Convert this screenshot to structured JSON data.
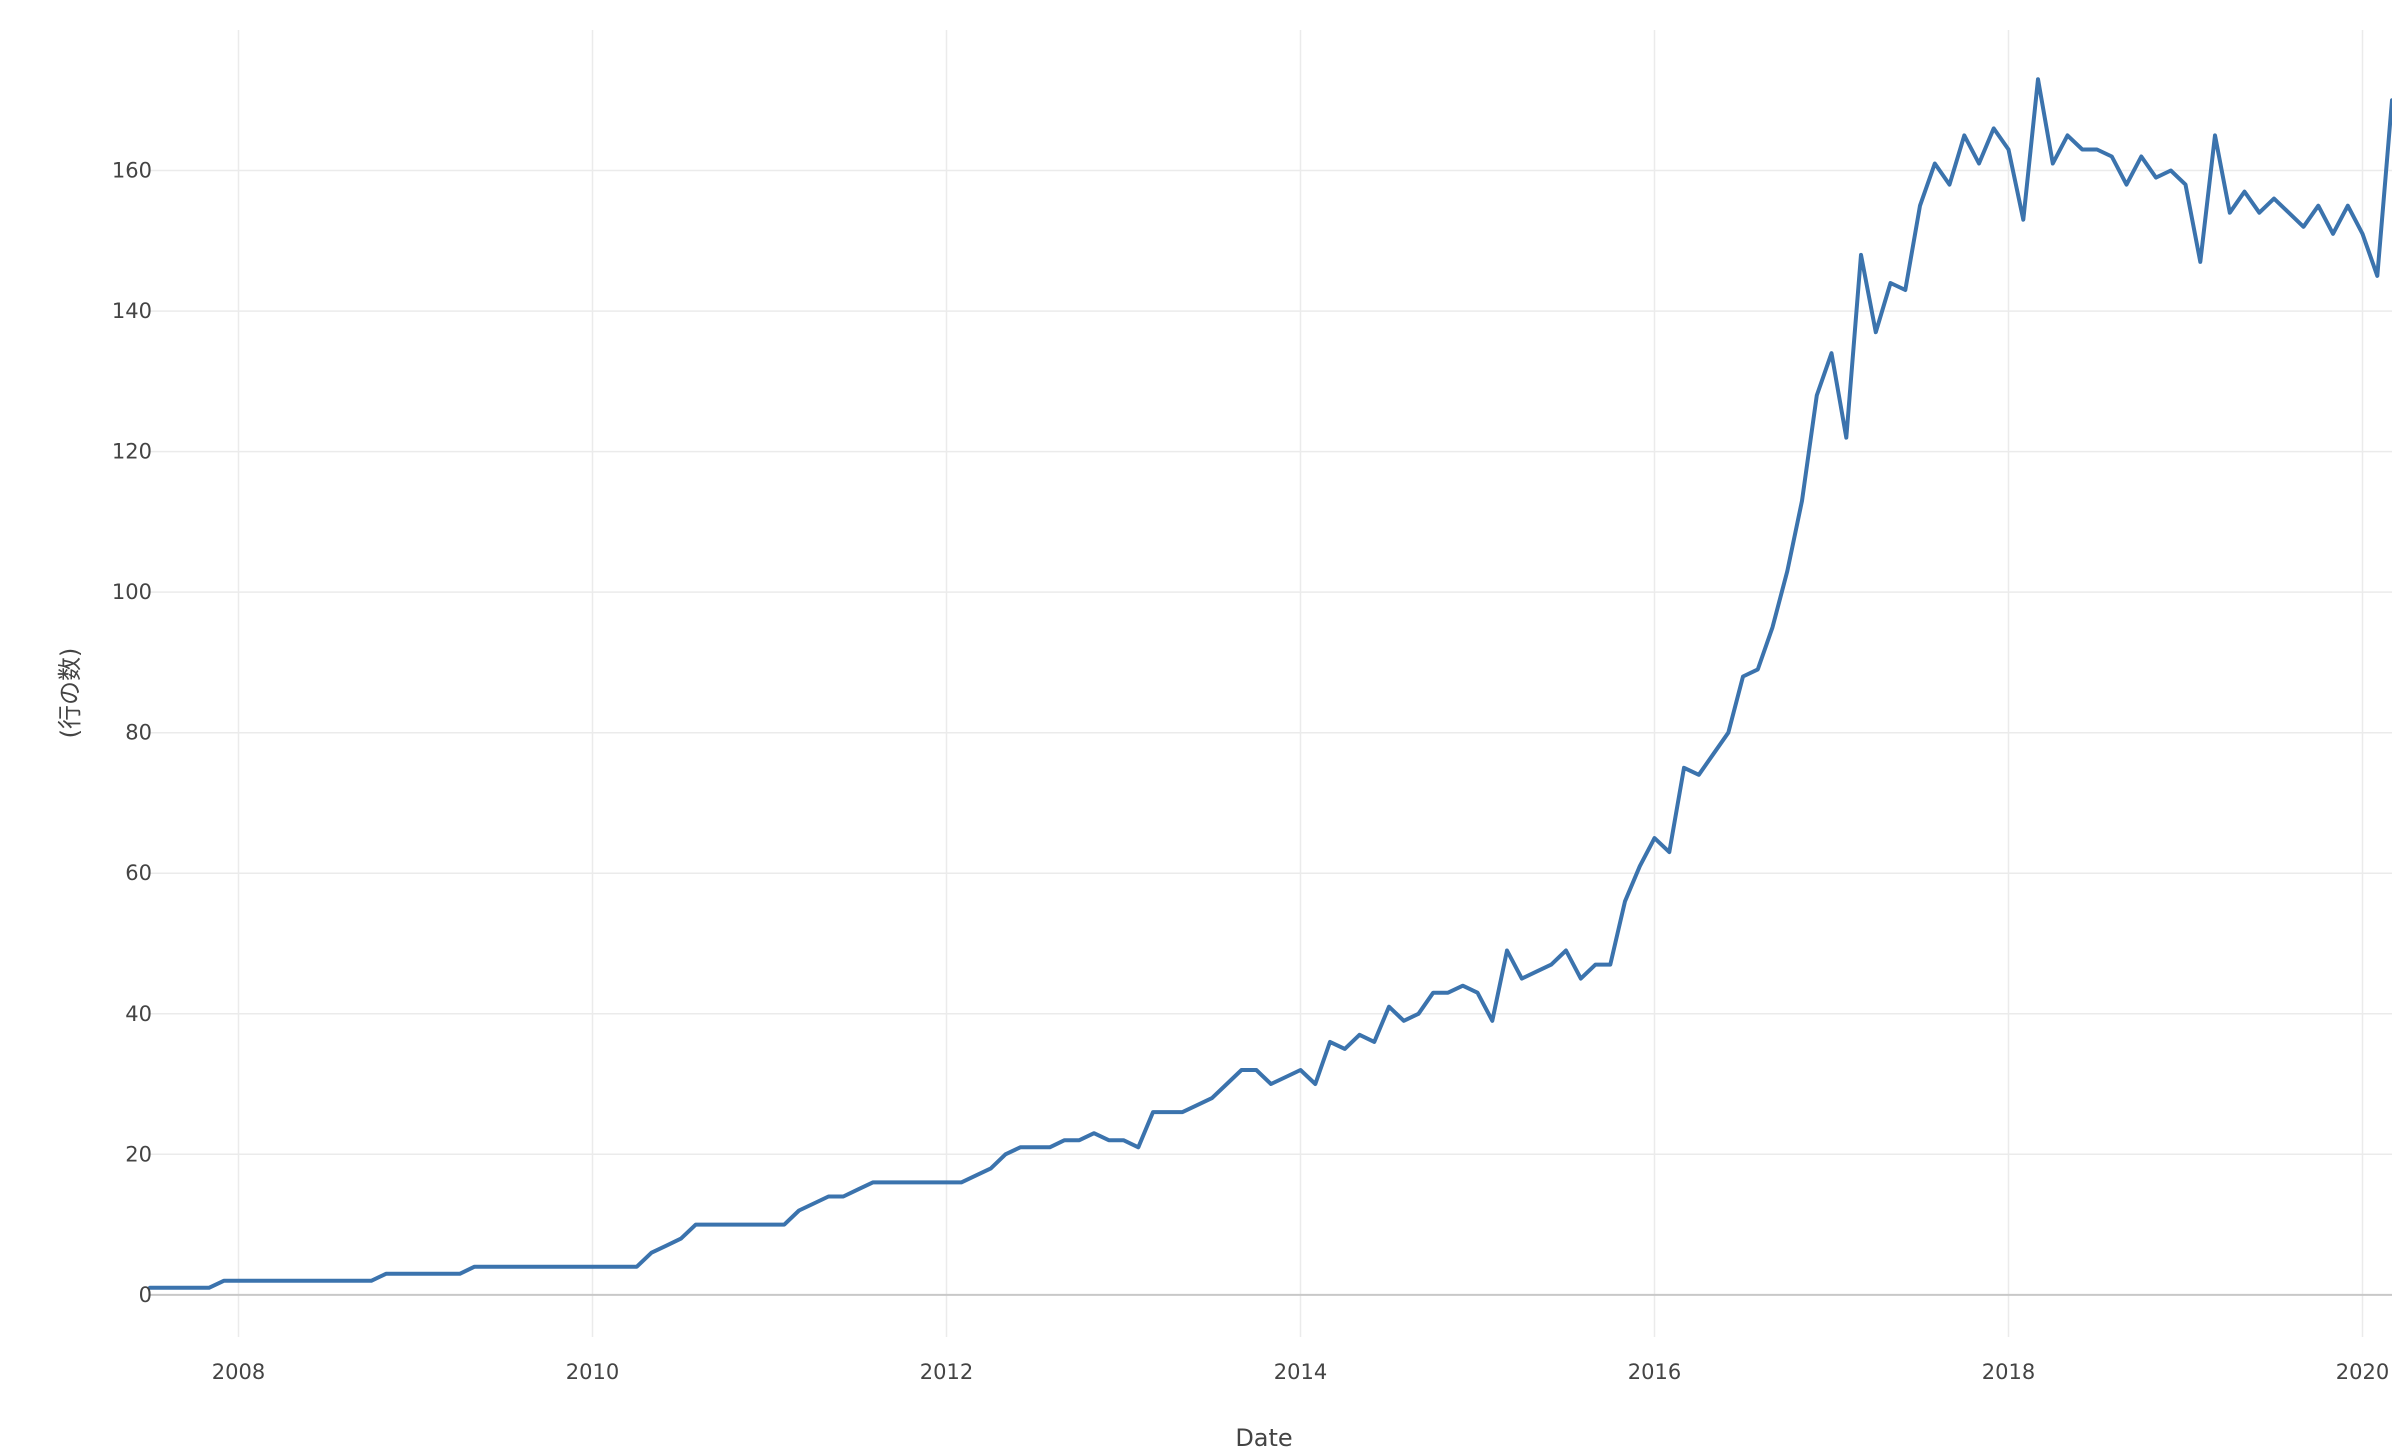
{
  "chart_data": {
    "type": "line",
    "title": "",
    "xlabel": "Date",
    "ylabel": "(行の数)",
    "xlim": [
      "2007-07",
      "2020-03"
    ],
    "ylim": [
      -6,
      180
    ],
    "grid": true,
    "x_ticks": [
      {
        "value": "2008-01",
        "label": "2008"
      },
      {
        "value": "2010-01",
        "label": "2010"
      },
      {
        "value": "2012-01",
        "label": "2012"
      },
      {
        "value": "2014-01",
        "label": "2014"
      },
      {
        "value": "2016-01",
        "label": "2016"
      },
      {
        "value": "2018-01",
        "label": "2018"
      },
      {
        "value": "2020-01",
        "label": "2020"
      }
    ],
    "y_ticks": [
      0,
      20,
      40,
      60,
      80,
      100,
      120,
      140,
      160
    ],
    "line_color": "#3b73ad",
    "series": [
      {
        "name": "",
        "x": [
          "2007-07",
          "2007-08",
          "2007-09",
          "2007-10",
          "2007-11",
          "2007-12",
          "2008-01",
          "2008-02",
          "2008-03",
          "2008-04",
          "2008-05",
          "2008-06",
          "2008-07",
          "2008-08",
          "2008-09",
          "2008-10",
          "2008-11",
          "2008-12",
          "2009-01",
          "2009-02",
          "2009-03",
          "2009-04",
          "2009-05",
          "2009-06",
          "2009-07",
          "2009-08",
          "2009-09",
          "2009-10",
          "2009-11",
          "2009-12",
          "2010-01",
          "2010-02",
          "2010-03",
          "2010-04",
          "2010-05",
          "2010-06",
          "2010-07",
          "2010-08",
          "2010-09",
          "2010-10",
          "2010-11",
          "2010-12",
          "2011-01",
          "2011-02",
          "2011-03",
          "2011-04",
          "2011-05",
          "2011-06",
          "2011-07",
          "2011-08",
          "2011-09",
          "2011-10",
          "2011-11",
          "2011-12",
          "2012-01",
          "2012-02",
          "2012-03",
          "2012-04",
          "2012-05",
          "2012-06",
          "2012-07",
          "2012-08",
          "2012-09",
          "2012-10",
          "2012-11",
          "2012-12",
          "2013-01",
          "2013-02",
          "2013-03",
          "2013-04",
          "2013-05",
          "2013-06",
          "2013-07",
          "2013-08",
          "2013-09",
          "2013-10",
          "2013-11",
          "2013-12",
          "2014-01",
          "2014-02",
          "2014-03",
          "2014-04",
          "2014-05",
          "2014-06",
          "2014-07",
          "2014-08",
          "2014-09",
          "2014-10",
          "2014-11",
          "2014-12",
          "2015-01",
          "2015-02",
          "2015-03",
          "2015-04",
          "2015-05",
          "2015-06",
          "2015-07",
          "2015-08",
          "2015-09",
          "2015-10",
          "2015-11",
          "2015-12",
          "2016-01",
          "2016-02",
          "2016-03",
          "2016-04",
          "2016-05",
          "2016-06",
          "2016-07",
          "2016-08",
          "2016-09",
          "2016-10",
          "2016-11",
          "2016-12",
          "2017-01",
          "2017-02",
          "2017-03",
          "2017-04",
          "2017-05",
          "2017-06",
          "2017-07",
          "2017-08",
          "2017-09",
          "2017-10",
          "2017-11",
          "2017-12",
          "2018-01",
          "2018-02",
          "2018-03",
          "2018-04",
          "2018-05",
          "2018-06",
          "2018-07",
          "2018-08",
          "2018-09",
          "2018-10",
          "2018-11",
          "2018-12",
          "2019-01",
          "2019-02",
          "2019-03",
          "2019-04",
          "2019-05",
          "2019-06",
          "2019-07",
          "2019-08",
          "2019-09",
          "2019-10",
          "2019-11",
          "2019-12",
          "2020-01",
          "2020-02",
          "2020-03"
        ],
        "y": [
          1,
          1,
          1,
          1,
          1,
          2,
          2,
          2,
          2,
          2,
          2,
          2,
          2,
          2,
          2,
          2,
          3,
          3,
          3,
          3,
          3,
          3,
          4,
          4,
          4,
          4,
          4,
          4,
          4,
          4,
          4,
          4,
          4,
          4,
          6,
          7,
          8,
          10,
          10,
          10,
          10,
          10,
          10,
          10,
          12,
          13,
          14,
          14,
          15,
          16,
          16,
          16,
          16,
          16,
          16,
          16,
          17,
          18,
          20,
          21,
          21,
          21,
          22,
          22,
          23,
          22,
          22,
          21,
          26,
          26,
          26,
          27,
          28,
          30,
          32,
          32,
          30,
          31,
          32,
          30,
          36,
          35,
          37,
          36,
          41,
          39,
          40,
          43,
          43,
          44,
          43,
          39,
          49,
          45,
          46,
          47,
          49,
          45,
          47,
          47,
          56,
          61,
          65,
          63,
          75,
          74,
          77,
          80,
          88,
          89,
          95,
          103,
          113,
          128,
          134,
          122,
          148,
          137,
          144,
          143,
          155,
          161,
          158,
          165,
          161,
          166,
          163,
          153,
          173,
          161,
          165,
          163,
          163,
          162,
          158,
          162,
          159,
          160,
          158,
          147,
          165,
          154,
          157,
          154,
          156,
          154,
          152,
          155,
          151,
          155,
          151,
          145,
          170
        ]
      }
    ]
  }
}
